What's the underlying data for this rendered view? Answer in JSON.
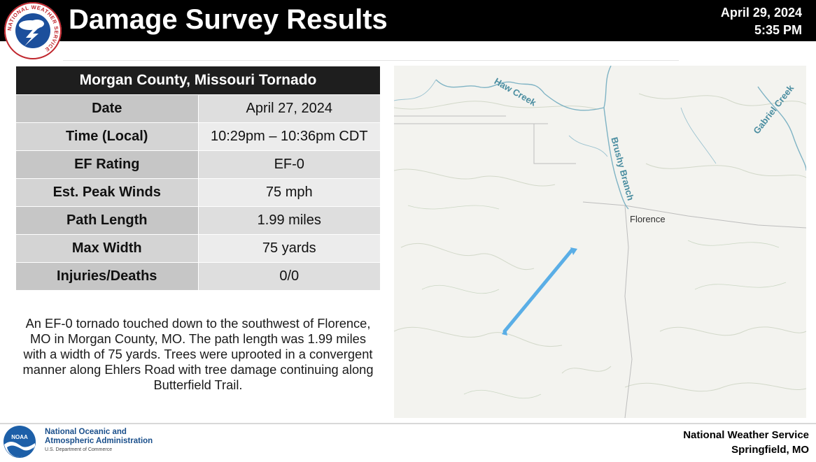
{
  "header": {
    "title": "Damage Survey Results",
    "date": "April 29, 2024",
    "time": "5:35 PM",
    "logo_text": "NATIONAL WEATHER SERVICE"
  },
  "table": {
    "title": "Morgan County, Missouri Tornado",
    "rows": [
      {
        "label": "Date",
        "value": "April 27, 2024"
      },
      {
        "label": "Time (Local)",
        "value": "10:29pm – 10:36pm CDT"
      },
      {
        "label": "EF Rating",
        "value": "EF-0"
      },
      {
        "label": "Est. Peak Winds",
        "value": "75 mph"
      },
      {
        "label": "Path Length",
        "value": "1.99 miles"
      },
      {
        "label": "Max Width",
        "value": "75 yards"
      },
      {
        "label": "Injuries/Deaths",
        "value": "0/0"
      }
    ]
  },
  "summary": "An EF-0 tornado touched down to the southwest of Florence, MO  in Morgan County, MO. The path length was 1.99 miles with a width of 75 yards. Trees were uprooted in a convergent manner along Ehlers Road with tree damage continuing along Butterfield Trail.",
  "map": {
    "labels": {
      "haw_creek": "Haw Creek",
      "gabriel_creek": "Gabriel Creek",
      "brushy_branch": "Brushy Branch",
      "florence": "Florence"
    },
    "path_color": "#5aaee6",
    "stream_color": "#7fb3c4"
  },
  "footer": {
    "noaa_line1": "National Oceanic and",
    "noaa_line2": "Atmospheric Administration",
    "noaa_dept": "U.S. Department of Commerce",
    "noaa_logo_text": "NOAA",
    "office_line1": "National Weather Service",
    "office_line2": "Springfield, MO"
  }
}
